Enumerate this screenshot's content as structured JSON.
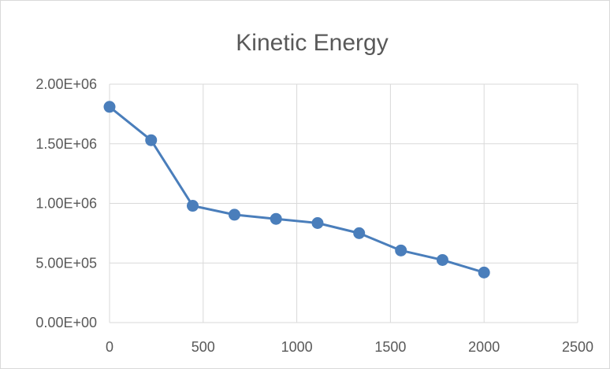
{
  "chart_data": {
    "type": "line",
    "title": "Kinetic Energy",
    "xlabel": "",
    "ylabel": "",
    "xlim": [
      0,
      2500
    ],
    "ylim": [
      0,
      2000000
    ],
    "x_ticks": [
      "0",
      "500",
      "1000",
      "1500",
      "2000",
      "2500"
    ],
    "y_ticks": [
      "0.00E+00",
      "5.00E+05",
      "1.00E+06",
      "1.50E+06",
      "2.00E+06"
    ],
    "grid": true,
    "legend": "none",
    "series": [
      {
        "x": [
          0,
          222,
          444,
          667,
          889,
          1111,
          1333,
          1556,
          1778,
          2000
        ],
        "values": [
          1810000,
          1530000,
          980000,
          905000,
          870000,
          835000,
          750000,
          605000,
          525000,
          420000
        ],
        "color": "#4a7ebb"
      }
    ]
  }
}
